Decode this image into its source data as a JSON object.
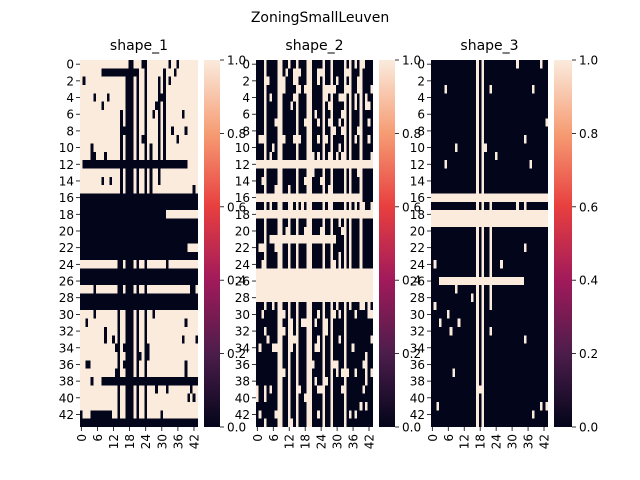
{
  "figure": {
    "title": "ZoningSmallLeuven"
  },
  "chart_data": [
    {
      "type": "heatmap",
      "title": "shape_1",
      "n_rows": 44,
      "n_cols": 44,
      "zlim": [
        0.0,
        1.0
      ],
      "y_ticks": [
        "0",
        "2",
        "4",
        "6",
        "8",
        "10",
        "12",
        "14",
        "16",
        "18",
        "20",
        "22",
        "24",
        "26",
        "28",
        "30",
        "32",
        "34",
        "36",
        "38",
        "40",
        "42"
      ],
      "x_ticks": [
        "0",
        "6",
        "12",
        "18",
        "24",
        "30",
        "36",
        "42"
      ],
      "colorbar_ticks": [
        "0.0",
        "0.2",
        "0.4",
        "0.6",
        "0.8",
        "1.0"
      ],
      "colormap": "rocket",
      "background_value": 1,
      "full_zero_rows": [
        16,
        17,
        19,
        20,
        21,
        26,
        29
      ],
      "full_zero_cols": [
        18
      ],
      "zero_row_spans": [
        [
          1,
          8,
          22
        ],
        [
          12,
          1,
          40
        ],
        [
          18,
          0,
          32
        ],
        [
          22,
          0,
          40
        ],
        [
          23,
          0,
          44
        ],
        [
          25,
          0,
          44
        ],
        [
          28,
          0,
          44
        ],
        [
          38,
          8,
          44
        ],
        [
          42,
          4,
          12
        ],
        [
          43,
          0,
          44
        ]
      ],
      "zero_col_spans": [
        [
          17,
          1,
          44
        ],
        [
          19,
          0,
          44
        ],
        [
          21,
          1,
          44
        ],
        [
          24,
          0,
          44
        ],
        [
          15,
          6,
          30
        ],
        [
          29,
          2,
          15
        ],
        [
          31,
          1,
          12
        ],
        [
          14,
          20,
          44
        ],
        [
          26,
          10,
          16
        ]
      ],
      "noise_seed": 11,
      "noise_density": 0.05
    },
    {
      "type": "heatmap",
      "title": "shape_2",
      "n_rows": 44,
      "n_cols": 44,
      "zlim": [
        0.0,
        1.0
      ],
      "y_ticks": [
        "0",
        "2",
        "4",
        "6",
        "8",
        "10",
        "12",
        "14",
        "16",
        "18",
        "20",
        "22",
        "24",
        "26",
        "28",
        "30",
        "32",
        "34",
        "36",
        "38",
        "40",
        "42"
      ],
      "x_ticks": [
        "0",
        "6",
        "12",
        "18",
        "24",
        "30",
        "36",
        "42"
      ],
      "colorbar_ticks": [
        "0.0",
        "0.2",
        "0.4",
        "0.6",
        "0.8",
        "1.0"
      ],
      "colormap": "rocket",
      "background_value": 0,
      "full_one_rows": [
        12,
        25,
        26,
        27,
        28
      ],
      "full_one_cols": [
        20,
        25,
        28
      ],
      "one_row_spans": [
        [
          16,
          0,
          40
        ],
        [
          18,
          0,
          44
        ],
        [
          21,
          6,
          30
        ]
      ],
      "one_col_spans": [
        [
          8,
          0,
          44
        ],
        [
          9,
          0,
          44
        ],
        [
          15,
          0,
          44
        ],
        [
          19,
          0,
          44
        ],
        [
          33,
          0,
          44
        ],
        [
          3,
          0,
          30
        ],
        [
          35,
          0,
          30
        ],
        [
          39,
          0,
          30
        ],
        [
          12,
          15,
          44
        ]
      ],
      "noise_seed": 23,
      "noise_density": 0.12
    },
    {
      "type": "heatmap",
      "title": "shape_3",
      "n_rows": 44,
      "n_cols": 44,
      "zlim": [
        0.0,
        1.0
      ],
      "y_ticks": [
        "0",
        "2",
        "4",
        "6",
        "8",
        "10",
        "12",
        "14",
        "16",
        "18",
        "20",
        "22",
        "24",
        "26",
        "28",
        "30",
        "32",
        "34",
        "36",
        "38",
        "40",
        "42"
      ],
      "x_ticks": [
        "0",
        "6",
        "12",
        "18",
        "24",
        "30",
        "36",
        "42"
      ],
      "colorbar_ticks": [
        "0.0",
        "0.2",
        "0.4",
        "0.6",
        "0.8",
        "1.0"
      ],
      "colormap": "rocket",
      "background_value": 0,
      "one_row_spans": [
        [
          16,
          0,
          44
        ],
        [
          18,
          0,
          44
        ],
        [
          19,
          0,
          44
        ],
        [
          26,
          3,
          35
        ]
      ],
      "one_col_spans": [
        [
          17,
          0,
          44
        ],
        [
          19,
          0,
          44
        ],
        [
          22,
          16,
          30
        ]
      ],
      "noise_seed": 37,
      "noise_density": 0.02
    }
  ]
}
